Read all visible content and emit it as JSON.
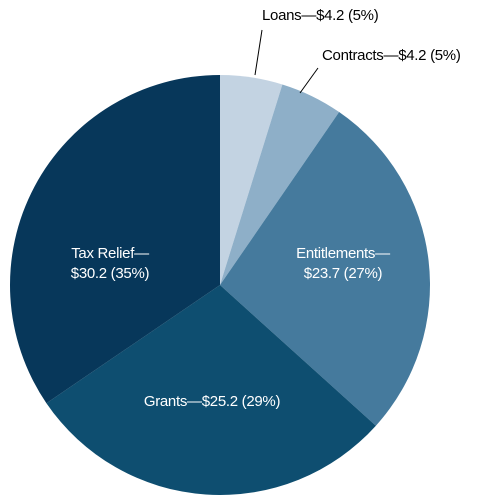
{
  "chart_data": {
    "type": "pie",
    "categories": [
      "Loans—",
      "Contracts—",
      "Entitlements—",
      "Grants—",
      "Tax Relief—"
    ],
    "values": [
      4.2,
      4.2,
      23.7,
      25.2,
      30.2
    ],
    "value_labels": [
      "$4.2 (5%)",
      "$4.2 (5%)",
      "$23.7 (27%)",
      "$25.2 (29%)",
      "$30.2 (35%)"
    ],
    "colors": [
      "#c3d3e2",
      "#8eafc8",
      "#457a9d",
      "#0e4e70",
      "#07375a"
    ]
  }
}
